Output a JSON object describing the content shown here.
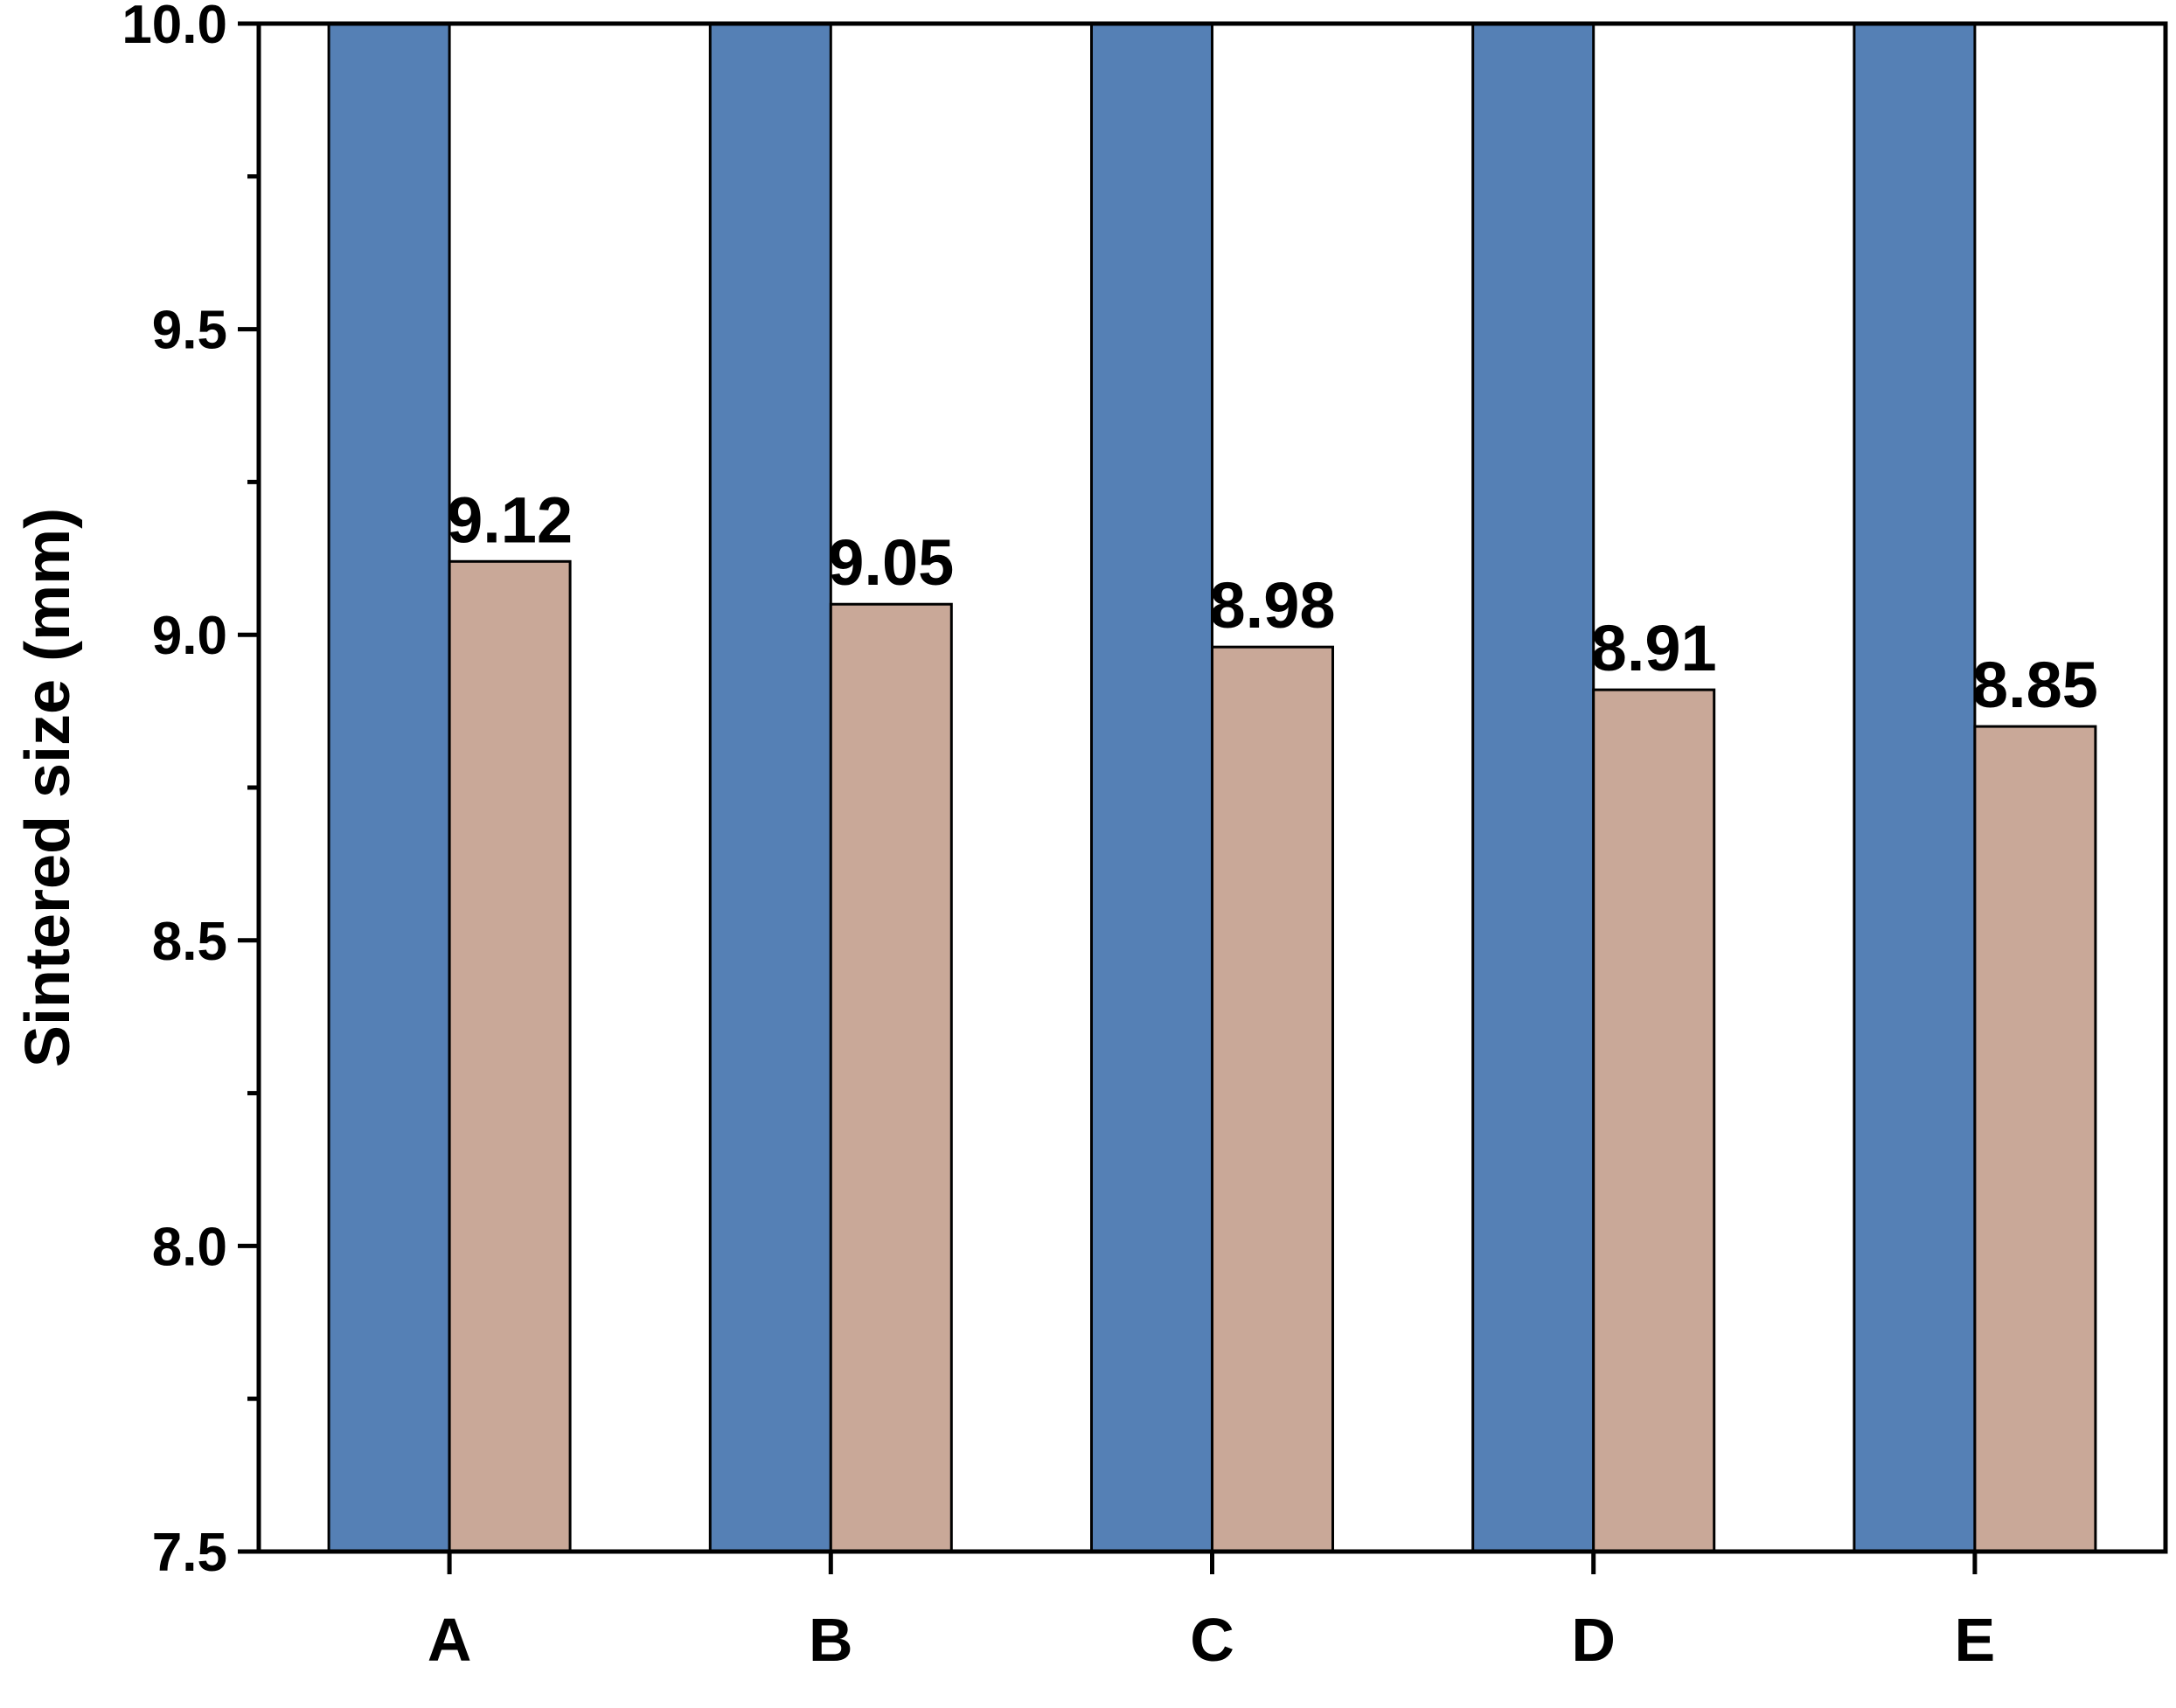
{
  "chart_data": {
    "type": "bar",
    "title": "",
    "xlabel": "",
    "ylabel": "Sintered size (mm)",
    "categories": [
      "A",
      "B",
      "C",
      "D",
      "E"
    ],
    "ylim": [
      7.5,
      10.0
    ],
    "y_ticks": [
      "7.5",
      "8.0",
      "8.5",
      "9.0",
      "9.5",
      "10.0"
    ],
    "y_tick_values": [
      7.5,
      8.0,
      8.5,
      9.0,
      9.5,
      10.0
    ],
    "series": [
      {
        "values": [
          10.0,
          10.0,
          10.0,
          10.0,
          10.0
        ],
        "color": "#5580b5",
        "show_labels": false
      },
      {
        "values": [
          9.12,
          9.05,
          8.98,
          8.91,
          8.85
        ],
        "labels": [
          "9.12",
          "9.05",
          "8.98",
          "8.91",
          "8.85"
        ],
        "color": "#c9a898",
        "show_labels": true
      }
    ],
    "grid": false,
    "legend": "none"
  }
}
